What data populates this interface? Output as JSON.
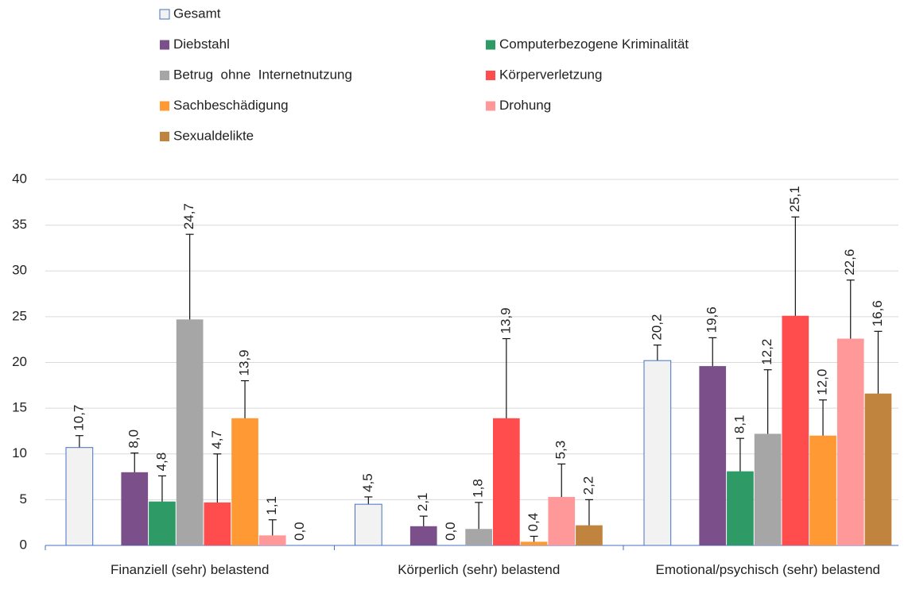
{
  "chart_data": {
    "type": "bar",
    "categories": [
      "Finanziell (sehr) belastend",
      "Körperlich (sehr) belastend",
      "Emotional/psychisch (sehr) belastend"
    ],
    "series": [
      {
        "name": "Gesamt",
        "color": "#f2f2f2",
        "outline": "#4472c4",
        "values": [
          10.7,
          4.5,
          20.2
        ],
        "value_labels": [
          "10,7",
          "4,5",
          "20,2"
        ],
        "errors": [
          1.3,
          0.8,
          1.7
        ]
      },
      {
        "name": "Diebstahl",
        "color": "#7b4f8a",
        "values": [
          8.0,
          2.1,
          19.6
        ],
        "value_labels": [
          "8,0",
          "2,1",
          "19,6"
        ],
        "errors": [
          2.1,
          1.1,
          3.1
        ]
      },
      {
        "name": "Computerbezogene Kriminalität",
        "color": "#2e9a66",
        "values": [
          4.8,
          0.0,
          8.1
        ],
        "value_labels": [
          "4,8",
          "0,0",
          "8,1"
        ],
        "errors": [
          2.8,
          0,
          3.6
        ]
      },
      {
        "name": "Betrug  ohne  Internetnutzung",
        "color": "#a6a6a6",
        "values": [
          24.7,
          1.8,
          12.2
        ],
        "value_labels": [
          "24,7",
          "1,8",
          "12,2"
        ],
        "errors": [
          9.3,
          2.9,
          7.0
        ]
      },
      {
        "name": "Körperverletzung",
        "color": "#ff4d4d",
        "values": [
          4.7,
          13.9,
          25.1
        ],
        "value_labels": [
          "4,7",
          "13,9",
          "25,1"
        ],
        "errors": [
          5.3,
          8.7,
          10.8
        ]
      },
      {
        "name": "Sachbeschädigung",
        "color": "#ff9933",
        "values": [
          13.9,
          0.4,
          12.0
        ],
        "value_labels": [
          "13,9",
          "0,4",
          "12,0"
        ],
        "errors": [
          4.1,
          0.6,
          3.9
        ]
      },
      {
        "name": "Drohung",
        "color": "#ff9999",
        "values": [
          1.1,
          5.3,
          22.6
        ],
        "value_labels": [
          "1,1",
          "5,3",
          "22,6"
        ],
        "errors": [
          1.7,
          3.6,
          6.4
        ]
      },
      {
        "name": "Sexualdelikte",
        "color": "#c0843f",
        "values": [
          0.0,
          2.2,
          16.6
        ],
        "value_labels": [
          "0,0",
          "2,2",
          "16,6"
        ],
        "errors": [
          0,
          2.8,
          6.8
        ]
      }
    ],
    "ylim": [
      0,
      40
    ],
    "yticks": [
      0,
      5,
      10,
      15,
      20,
      25,
      30,
      35,
      40
    ],
    "grid": true
  }
}
